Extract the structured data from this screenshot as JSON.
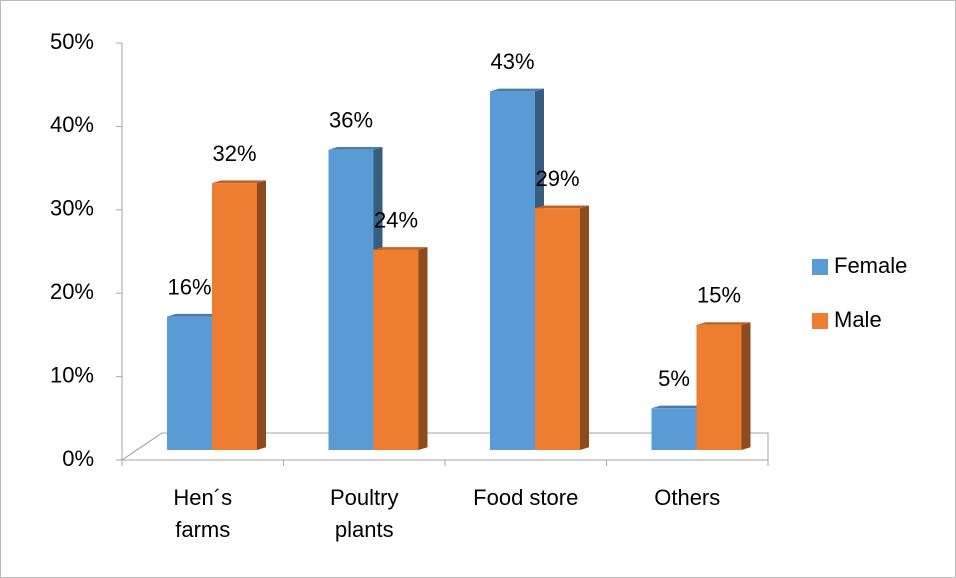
{
  "chart_data": {
    "type": "bar3d",
    "categories": [
      "Hen´s farms",
      "Poultry plants",
      "Food store",
      "Others"
    ],
    "series": [
      {
        "name": "Female",
        "color": "#5b9bd5",
        "values": [
          16,
          36,
          43,
          5
        ],
        "value_labels": [
          "16%",
          "36%",
          "43%",
          "5%"
        ]
      },
      {
        "name": "Male",
        "color": "#ed7d31",
        "values": [
          32,
          24,
          29,
          15
        ],
        "value_labels": [
          "32%",
          "24%",
          "29%",
          "15%"
        ]
      }
    ],
    "ylim": [
      0,
      50
    ],
    "yticks": [
      {
        "value": 0,
        "label": "0%"
      },
      {
        "value": 10,
        "label": "10%"
      },
      {
        "value": 20,
        "label": "20%"
      },
      {
        "value": 30,
        "label": "30%"
      },
      {
        "value": 40,
        "label": "40%"
      },
      {
        "value": 50,
        "label": "50%"
      }
    ],
    "legend": "right"
  }
}
